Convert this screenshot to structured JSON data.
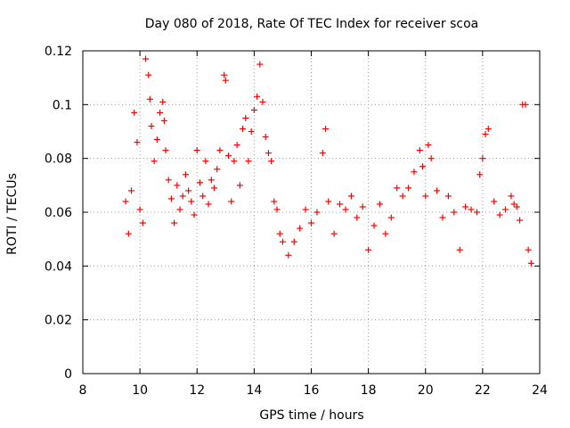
{
  "chart_data": {
    "type": "scatter",
    "title": "Day 080 of 2018, Rate Of TEC Index for receiver scoa",
    "xlabel": "GPS time / hours",
    "ylabel": "ROTI / TECUs",
    "xlim": [
      8,
      24
    ],
    "ylim": [
      0,
      0.12
    ],
    "grid": true,
    "marker": "+",
    "color": "#ff0000",
    "x_ticks": [
      "8",
      "10",
      "12",
      "14",
      "16",
      "18",
      "20",
      "22",
      "24"
    ],
    "y_ticks": [
      "0",
      "0.02",
      "0.04",
      "0.06",
      "0.08",
      "0.1",
      "0.12"
    ],
    "series": [
      {
        "name": "ROTI",
        "x": [
          9.5,
          9.6,
          9.7,
          9.8,
          9.9,
          10.0,
          10.1,
          10.2,
          10.3,
          10.35,
          10.4,
          10.5,
          10.6,
          10.7,
          10.8,
          10.85,
          10.9,
          11.0,
          11.1,
          11.2,
          11.3,
          11.4,
          11.5,
          11.6,
          11.7,
          11.8,
          11.9,
          12.0,
          12.1,
          12.2,
          12.3,
          12.4,
          12.5,
          12.6,
          12.7,
          12.8,
          12.95,
          13.0,
          13.1,
          13.2,
          13.3,
          13.4,
          13.5,
          13.6,
          13.7,
          13.8,
          13.9,
          14.0,
          14.1,
          14.2,
          14.3,
          14.4,
          14.5,
          14.6,
          14.7,
          14.8,
          14.9,
          15.0,
          15.2,
          15.4,
          15.6,
          15.8,
          16.0,
          16.2,
          16.4,
          16.5,
          16.6,
          16.8,
          17.0,
          17.2,
          17.4,
          17.6,
          17.8,
          18.0,
          18.2,
          18.4,
          18.6,
          18.8,
          19.0,
          19.2,
          19.4,
          19.6,
          19.8,
          19.9,
          20.0,
          20.1,
          20.2,
          20.4,
          20.6,
          20.8,
          21.0,
          21.2,
          21.4,
          21.6,
          21.8,
          21.9,
          22.0,
          22.1,
          22.2,
          22.4,
          22.6,
          22.8,
          23.0,
          23.1,
          23.2,
          23.3,
          23.4,
          23.5,
          23.6,
          23.7
        ],
        "y": [
          0.064,
          0.052,
          0.068,
          0.097,
          0.086,
          0.061,
          0.056,
          0.117,
          0.111,
          0.102,
          0.092,
          0.079,
          0.087,
          0.097,
          0.101,
          0.094,
          0.083,
          0.072,
          0.065,
          0.056,
          0.07,
          0.061,
          0.066,
          0.074,
          0.068,
          0.064,
          0.059,
          0.083,
          0.071,
          0.066,
          0.079,
          0.063,
          0.072,
          0.069,
          0.076,
          0.083,
          0.111,
          0.109,
          0.081,
          0.064,
          0.079,
          0.085,
          0.07,
          0.091,
          0.095,
          0.079,
          0.09,
          0.098,
          0.103,
          0.115,
          0.101,
          0.088,
          0.082,
          0.079,
          0.064,
          0.061,
          0.052,
          0.049,
          0.044,
          0.049,
          0.054,
          0.061,
          0.056,
          0.06,
          0.082,
          0.091,
          0.064,
          0.052,
          0.063,
          0.061,
          0.066,
          0.058,
          0.062,
          0.046,
          0.055,
          0.063,
          0.052,
          0.058,
          0.069,
          0.066,
          0.069,
          0.075,
          0.083,
          0.077,
          0.066,
          0.085,
          0.08,
          0.068,
          0.058,
          0.066,
          0.06,
          0.046,
          0.062,
          0.061,
          0.06,
          0.074,
          0.08,
          0.089,
          0.091,
          0.064,
          0.059,
          0.061,
          0.066,
          0.063,
          0.062,
          0.057,
          0.1,
          0.1,
          0.046,
          0.041
        ]
      }
    ]
  }
}
